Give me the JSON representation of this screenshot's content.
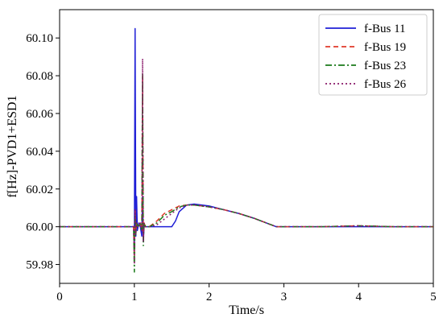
{
  "chart_data": {
    "type": "line",
    "xlabel": "Time/s",
    "ylabel": "f[Hz]-PVD1+ESD1",
    "xlim": [
      0,
      5
    ],
    "ylim": [
      59.97,
      60.115
    ],
    "xticks": [
      0,
      1,
      2,
      3,
      4,
      5
    ],
    "yticks": [
      59.98,
      60.0,
      60.02,
      60.04,
      60.06,
      60.08,
      60.1
    ],
    "ytick_labels": [
      "59.98",
      "60.00",
      "60.02",
      "60.04",
      "60.06",
      "60.08",
      "60.10"
    ],
    "grid": false,
    "legend_position": "top-right",
    "series": [
      {
        "name": "f-Bus 11",
        "color": "#1f1fd6",
        "dash": "solid",
        "x": [
          0,
          0.99,
          1.0,
          1.01,
          1.02,
          1.03,
          1.04,
          1.05,
          1.06,
          1.08,
          1.1,
          1.11,
          1.12,
          1.13,
          1.15,
          1.2,
          1.3,
          1.4,
          1.5,
          1.55,
          1.6,
          1.7,
          1.8,
          2.0,
          2.2,
          2.4,
          2.6,
          2.8,
          2.9,
          3.0,
          3.5,
          4.0,
          4.5,
          5.0
        ],
        "y": [
          60.0,
          60.0,
          59.99,
          60.105,
          59.995,
          60.016,
          59.998,
          60.0,
          60.002,
          60.0,
          59.995,
          60.016,
          59.992,
          60.0,
          60.0,
          60.0,
          60.0,
          60.0,
          60.0,
          60.003,
          60.008,
          60.0115,
          60.012,
          60.011,
          60.009,
          60.007,
          60.0045,
          60.0015,
          60.0,
          60.0,
          60.0,
          60.0,
          60.0,
          60.0
        ]
      },
      {
        "name": "f-Bus 19",
        "color": "#e03a2a",
        "dash": "6,4",
        "x": [
          0,
          0.99,
          1.0,
          1.01,
          1.02,
          1.03,
          1.05,
          1.08,
          1.1,
          1.11,
          1.12,
          1.13,
          1.15,
          1.2,
          1.3,
          1.4,
          1.5,
          1.6,
          1.7,
          1.8,
          2.0,
          2.2,
          2.4,
          2.6,
          2.8,
          2.9,
          3.5,
          4.0,
          4.5,
          5.0
        ],
        "y": [
          60.0,
          60.0,
          59.982,
          60.008,
          59.996,
          60.002,
          60.0,
          60.002,
          59.998,
          60.08,
          59.994,
          60.002,
          60.0,
          60.0,
          60.003,
          60.007,
          60.009,
          60.011,
          60.0115,
          60.0115,
          60.0105,
          60.009,
          60.007,
          60.0045,
          60.0015,
          60.0,
          60.0,
          60.0005,
          60.0,
          60.0
        ]
      },
      {
        "name": "f-Bus 23",
        "color": "#1a7a1a",
        "dash": "8,3,2,3",
        "x": [
          0,
          0.99,
          1.0,
          1.01,
          1.02,
          1.03,
          1.05,
          1.08,
          1.1,
          1.11,
          1.12,
          1.13,
          1.15,
          1.2,
          1.3,
          1.4,
          1.5,
          1.6,
          1.7,
          1.8,
          2.0,
          2.2,
          2.4,
          2.6,
          2.8,
          2.9,
          3.5,
          4.0,
          4.5,
          5.0
        ],
        "y": [
          60.0,
          60.0,
          59.976,
          60.006,
          59.996,
          60.002,
          60.0,
          60.002,
          59.998,
          60.081,
          59.99,
          60.002,
          60.0,
          60.0,
          60.002,
          60.006,
          60.008,
          60.0105,
          60.0115,
          60.0115,
          60.0105,
          60.009,
          60.007,
          60.0045,
          60.0015,
          60.0,
          60.0,
          60.0005,
          60.0,
          60.0
        ]
      },
      {
        "name": "f-Bus 26",
        "color": "#8a1a6a",
        "dash": "2,3",
        "x": [
          0,
          0.99,
          1.0,
          1.01,
          1.02,
          1.03,
          1.05,
          1.08,
          1.1,
          1.11,
          1.12,
          1.13,
          1.15,
          1.2,
          1.3,
          1.4,
          1.5,
          1.6,
          1.7,
          1.8,
          2.0,
          2.2,
          2.4,
          2.6,
          2.8,
          2.9,
          3.5,
          4.0,
          4.5,
          5.0
        ],
        "y": [
          60.0,
          60.0,
          59.98,
          60.009,
          59.996,
          60.002,
          60.0,
          60.002,
          59.998,
          60.089,
          59.992,
          60.002,
          60.0,
          60.0,
          60.001,
          60.004,
          60.007,
          60.01,
          60.0115,
          60.0115,
          60.0105,
          60.009,
          60.007,
          60.0045,
          60.0015,
          60.0,
          60.0,
          60.0005,
          60.0,
          60.0
        ]
      }
    ]
  }
}
